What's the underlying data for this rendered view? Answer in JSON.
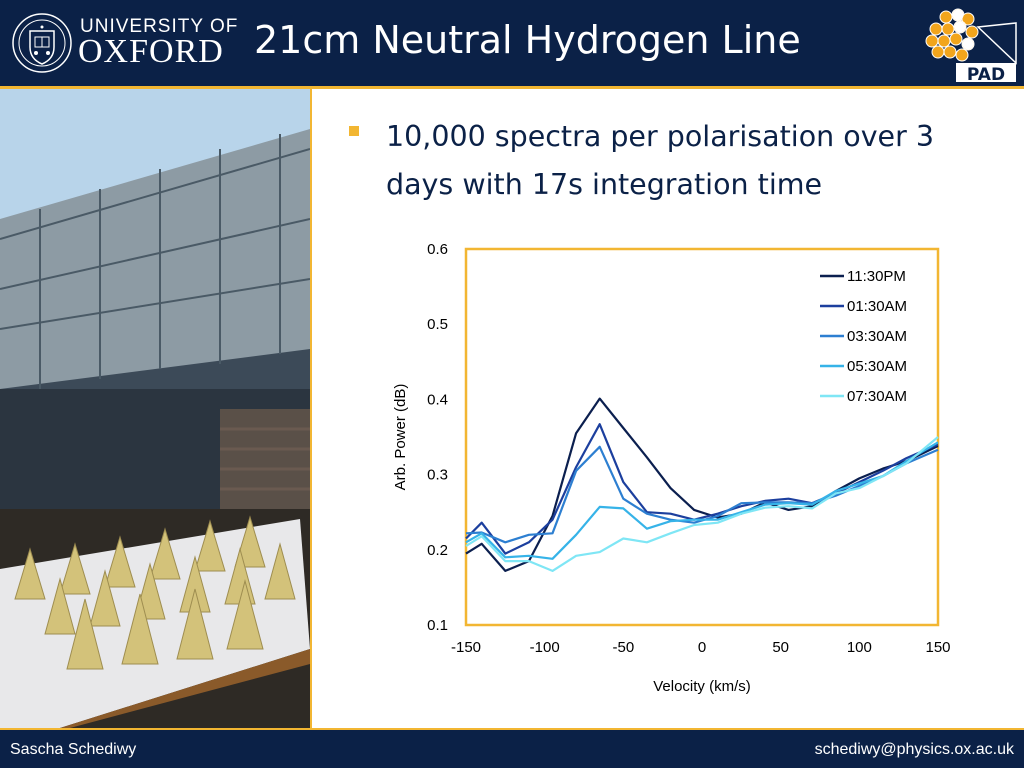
{
  "header": {
    "university_line": "UNIVERSITY OF",
    "university_name": "OXFORD",
    "title": "21cm Neutral Hydrogen Line",
    "logo_label": "PAD"
  },
  "bullets": [
    "10,000 spectra per polarisation over 3 days with 17s integration time"
  ],
  "photo": {
    "icon": "antenna-array-photo"
  },
  "colors": {
    "navy": "#0b2147",
    "accent": "#f2b632"
  },
  "chart_data": {
    "type": "line",
    "title": "",
    "xlabel": "Velocity (km/s)",
    "ylabel": "Arb. Power (dB)",
    "xlim": [
      -150,
      150
    ],
    "ylim": [
      0.1,
      0.6
    ],
    "xticks": [
      -150,
      -100,
      -50,
      0,
      50,
      100,
      150
    ],
    "yticks": [
      0.1,
      0.2,
      0.3,
      0.4,
      0.5,
      0.6
    ],
    "grid": false,
    "legend": "top-right",
    "x": [
      -150,
      -140,
      -125,
      -110,
      -95,
      -80,
      -65,
      -50,
      -35,
      -20,
      -5,
      10,
      25,
      40,
      55,
      70,
      85,
      100,
      115,
      130,
      150
    ],
    "series": [
      {
        "name": "11:30PM",
        "color": "#0b1f4f",
        "values": [
          0.195,
          0.208,
          0.172,
          0.185,
          0.245,
          0.355,
          0.401,
          0.362,
          0.323,
          0.282,
          0.253,
          0.243,
          0.248,
          0.263,
          0.253,
          0.258,
          0.278,
          0.295,
          0.308,
          0.318,
          0.338
        ]
      },
      {
        "name": "01:30AM",
        "color": "#1c3f9e",
        "values": [
          0.215,
          0.236,
          0.195,
          0.21,
          0.24,
          0.31,
          0.367,
          0.29,
          0.25,
          0.248,
          0.24,
          0.248,
          0.258,
          0.265,
          0.268,
          0.262,
          0.275,
          0.29,
          0.305,
          0.322,
          0.34
        ]
      },
      {
        "name": "03:30AM",
        "color": "#2d7fd1",
        "values": [
          0.222,
          0.223,
          0.21,
          0.22,
          0.222,
          0.305,
          0.337,
          0.268,
          0.248,
          0.24,
          0.236,
          0.245,
          0.262,
          0.263,
          0.263,
          0.262,
          0.272,
          0.285,
          0.298,
          0.315,
          0.333
        ]
      },
      {
        "name": "05:30AM",
        "color": "#36b3e8",
        "values": [
          0.21,
          0.222,
          0.19,
          0.192,
          0.188,
          0.22,
          0.257,
          0.255,
          0.228,
          0.238,
          0.24,
          0.24,
          0.25,
          0.26,
          0.262,
          0.26,
          0.278,
          0.288,
          0.298,
          0.318,
          0.343
        ]
      },
      {
        "name": "07:30AM",
        "color": "#7fe6f5",
        "values": [
          0.205,
          0.218,
          0.185,
          0.185,
          0.172,
          0.192,
          0.197,
          0.215,
          0.21,
          0.222,
          0.233,
          0.236,
          0.248,
          0.256,
          0.258,
          0.255,
          0.275,
          0.282,
          0.298,
          0.315,
          0.35
        ]
      }
    ]
  },
  "footer": {
    "author": "Sascha Schediwy",
    "email": "schediwy@physics.ox.ac.uk"
  }
}
